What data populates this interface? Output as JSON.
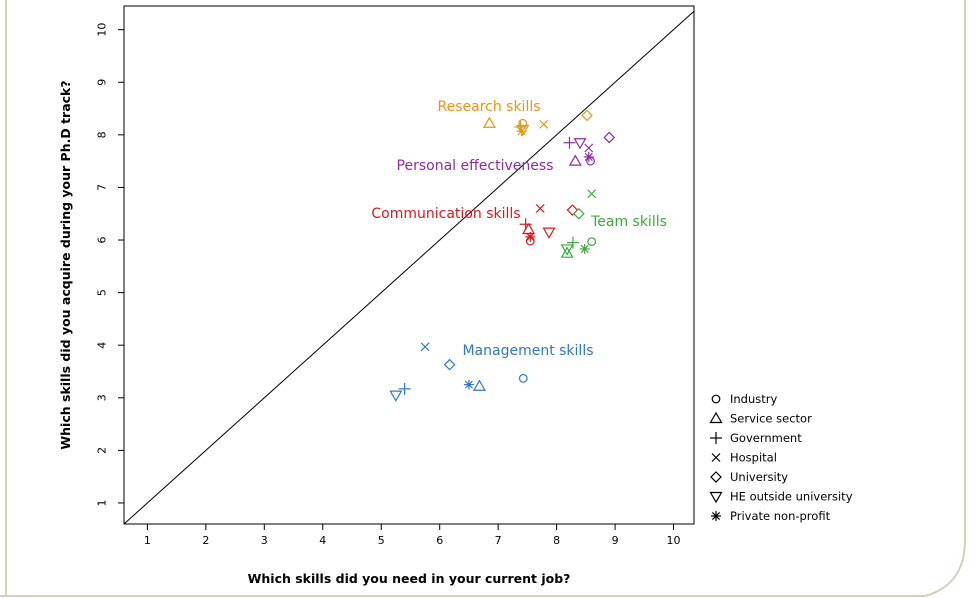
{
  "chart_data": {
    "type": "scatter",
    "xlabel": "Which skills did you need in your current job?",
    "ylabel": "Which skills did you acquire during your Ph.D track?",
    "xlim": [
      0.6,
      10.35
    ],
    "ylim": [
      0.6,
      10.45
    ],
    "xticks": [
      1,
      2,
      3,
      4,
      5,
      6,
      7,
      8,
      9,
      10
    ],
    "yticks": [
      1,
      2,
      3,
      4,
      5,
      6,
      7,
      8,
      9,
      10
    ],
    "diagonal": "y = x",
    "legend_position": "right",
    "legend": [
      {
        "marker": "circle",
        "label": "Industry"
      },
      {
        "marker": "triangle-up",
        "label": "Service sector"
      },
      {
        "marker": "plus",
        "label": "Government"
      },
      {
        "marker": "cross",
        "label": "Hospital"
      },
      {
        "marker": "diamond",
        "label": "University"
      },
      {
        "marker": "triangle-down",
        "label": "HE outside university"
      },
      {
        "marker": "asterisk",
        "label": "Private non-profit"
      }
    ],
    "groups": [
      {
        "label": "Research skills",
        "color": "#E8960F",
        "points": [
          {
            "marker": "circle",
            "x": 7.42,
            "y": 8.22
          },
          {
            "marker": "triangle-up",
            "x": 6.85,
            "y": 8.22
          },
          {
            "marker": "plus",
            "x": 7.38,
            "y": 8.15
          },
          {
            "marker": "cross",
            "x": 7.78,
            "y": 8.2
          },
          {
            "marker": "diamond",
            "x": 8.52,
            "y": 8.37
          },
          {
            "marker": "triangle-down",
            "x": 7.42,
            "y": 8.1
          },
          {
            "marker": "asterisk",
            "x": 7.4,
            "y": 8.07
          }
        ]
      },
      {
        "label": "Personal effectiveness",
        "color": "#8B2E9E",
        "points": [
          {
            "marker": "circle",
            "x": 8.58,
            "y": 7.5
          },
          {
            "marker": "triangle-up",
            "x": 8.32,
            "y": 7.5
          },
          {
            "marker": "plus",
            "x": 8.22,
            "y": 7.85
          },
          {
            "marker": "cross",
            "x": 8.55,
            "y": 7.75
          },
          {
            "marker": "diamond",
            "x": 8.9,
            "y": 7.95
          },
          {
            "marker": "triangle-down",
            "x": 8.4,
            "y": 7.85
          },
          {
            "marker": "asterisk",
            "x": 8.55,
            "y": 7.58
          }
        ]
      },
      {
        "label": "Communication skills",
        "color": "#D7191C",
        "points": [
          {
            "marker": "circle",
            "x": 7.55,
            "y": 5.98
          },
          {
            "marker": "triangle-up",
            "x": 7.52,
            "y": 6.2
          },
          {
            "marker": "plus",
            "x": 7.47,
            "y": 6.3
          },
          {
            "marker": "cross",
            "x": 7.72,
            "y": 6.6
          },
          {
            "marker": "diamond",
            "x": 8.27,
            "y": 6.57
          },
          {
            "marker": "triangle-down",
            "x": 7.87,
            "y": 6.15
          },
          {
            "marker": "asterisk",
            "x": 7.55,
            "y": 6.06
          }
        ]
      },
      {
        "label": "Team skills",
        "color": "#3BAA3B",
        "points": [
          {
            "marker": "circle",
            "x": 8.6,
            "y": 5.97
          },
          {
            "marker": "triangle-up",
            "x": 8.18,
            "y": 5.75
          },
          {
            "marker": "plus",
            "x": 8.28,
            "y": 5.95
          },
          {
            "marker": "cross",
            "x": 8.6,
            "y": 6.88
          },
          {
            "marker": "diamond",
            "x": 8.38,
            "y": 6.5
          },
          {
            "marker": "triangle-down",
            "x": 8.18,
            "y": 5.83
          },
          {
            "marker": "asterisk",
            "x": 8.48,
            "y": 5.83
          }
        ]
      },
      {
        "label": "Management skills",
        "color": "#2F78C4",
        "points": [
          {
            "marker": "circle",
            "x": 7.43,
            "y": 3.37
          },
          {
            "marker": "triangle-up",
            "x": 6.68,
            "y": 3.22
          },
          {
            "marker": "plus",
            "x": 5.4,
            "y": 3.17
          },
          {
            "marker": "cross",
            "x": 5.75,
            "y": 3.97
          },
          {
            "marker": "diamond",
            "x": 6.17,
            "y": 3.63
          },
          {
            "marker": "triangle-down",
            "x": 5.25,
            "y": 3.05
          },
          {
            "marker": "asterisk",
            "x": 6.5,
            "y": 3.25
          }
        ]
      }
    ]
  }
}
